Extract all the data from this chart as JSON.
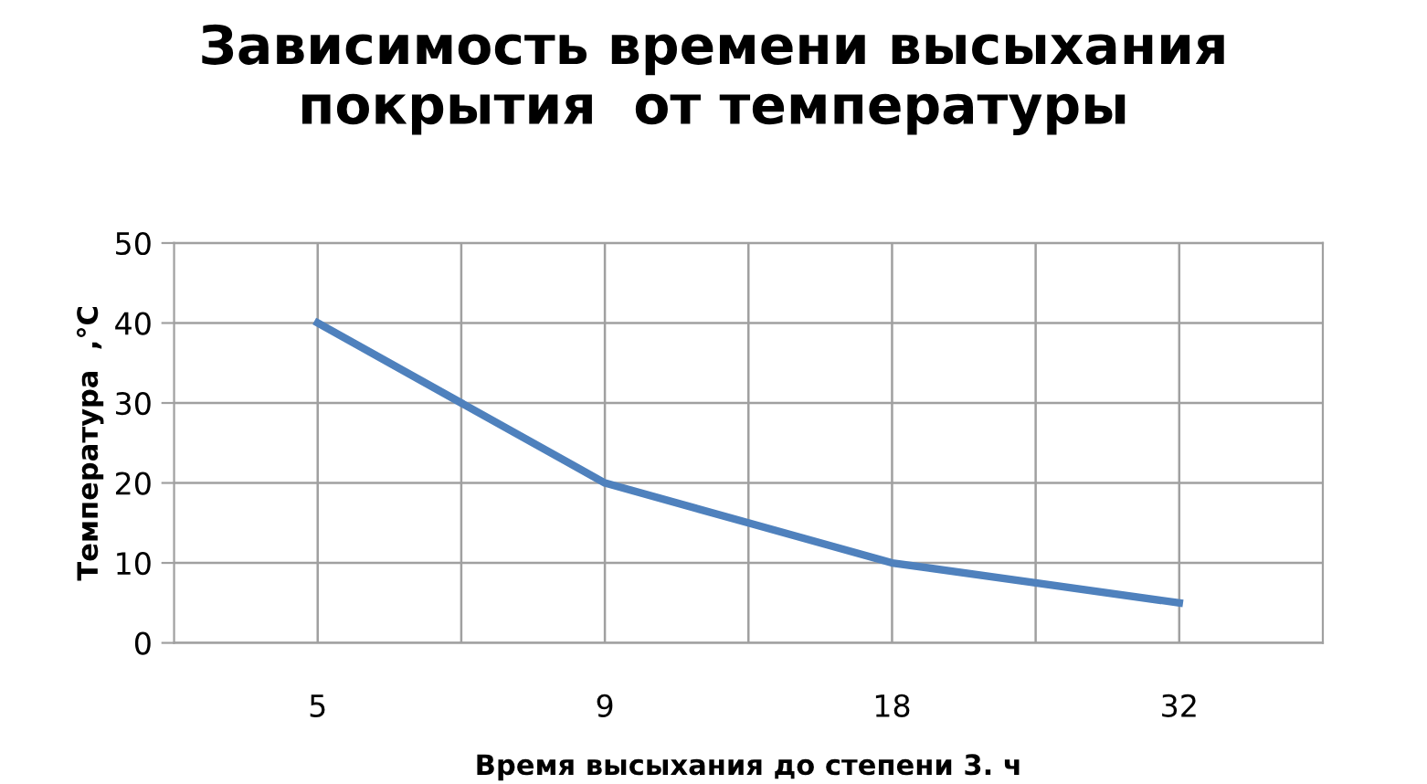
{
  "chart_data": {
    "type": "line",
    "title": "Зависимость времени высыхания\nпокрытия  от температуры",
    "xlabel": "Время высыхания до степени 3. ч",
    "ylabel": "Температура  ,°С",
    "categories": [
      "5",
      null,
      "9",
      null,
      "18",
      null,
      "32"
    ],
    "series": [
      {
        "color": "#4f81bd",
        "values": [
          40,
          30,
          20,
          15,
          10,
          7.5,
          5
        ]
      }
    ],
    "ylim": [
      0,
      50
    ],
    "yticks": [
      0,
      10,
      20,
      30,
      40,
      50
    ],
    "grid": true,
    "marker": "none",
    "line_style": "solid",
    "legend": false
  }
}
